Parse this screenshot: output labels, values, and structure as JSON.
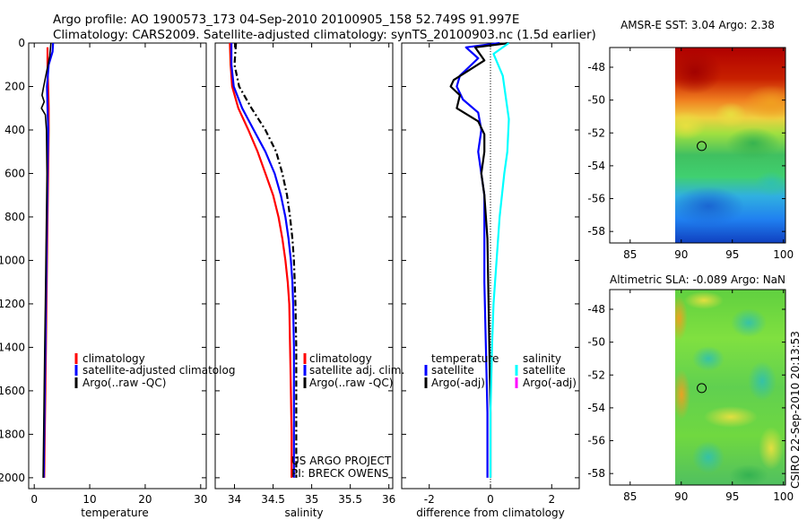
{
  "header": {
    "line1": "Argo profile: AO 1900573_173 04-Sep-2010 20100905_158 52.749S 91.997E",
    "line2": "Climatology: CARS2009. Satellite-adjusted climatology: synTS_20100903.nc (1.5d earlier)"
  },
  "side_stamp": "CSIRO 22-Sep-2010 20:13:53",
  "colors": {
    "climatology": "#ff0000",
    "satellite": "#0000ff",
    "argo": "#000000",
    "salinity_sat": "#00ffff",
    "salinity_argo": "#ff00ff"
  },
  "chart_data": [
    {
      "type": "line",
      "xlabel": "temperature",
      "xlim": [
        -1,
        31
      ],
      "ylim": [
        2050,
        0
      ],
      "xticks": [
        0,
        10,
        20,
        30
      ],
      "yticks": [
        0,
        200,
        400,
        600,
        800,
        1000,
        1200,
        1400,
        1600,
        1800,
        2000
      ],
      "legend": [
        "climatology",
        "satellite-adjusted climatolog",
        "Argo(..raw -QC)"
      ],
      "series": [
        {
          "name": "climatology",
          "color": "#ff0000",
          "width": 2.2,
          "points": [
            [
              2.4,
              20
            ],
            [
              2.4,
              100
            ],
            [
              2.5,
              200
            ],
            [
              2.6,
              300
            ],
            [
              2.6,
              400
            ],
            [
              2.5,
              600
            ],
            [
              2.4,
              800
            ],
            [
              2.3,
              1000
            ],
            [
              2.2,
              1200
            ],
            [
              2.1,
              1400
            ],
            [
              2.0,
              1600
            ],
            [
              1.9,
              1800
            ],
            [
              1.8,
              2000
            ]
          ]
        },
        {
          "name": "satellite-adjusted climatolog",
          "color": "#0000ff",
          "width": 2.2,
          "points": [
            [
              3.4,
              0
            ],
            [
              3.3,
              40
            ],
            [
              2.6,
              100
            ],
            [
              2.3,
              200
            ],
            [
              2.4,
              300
            ],
            [
              2.5,
              400
            ],
            [
              2.4,
              600
            ],
            [
              2.3,
              800
            ],
            [
              2.2,
              1000
            ],
            [
              2.1,
              1200
            ],
            [
              2.0,
              1400
            ],
            [
              1.9,
              1600
            ],
            [
              1.8,
              1800
            ],
            [
              1.7,
              2000
            ]
          ]
        },
        {
          "name": "Argo(..raw -QC)",
          "color": "#000000",
          "width": 1.6,
          "points": [
            [
              3.0,
              0
            ],
            [
              2.8,
              60
            ],
            [
              1.7,
              200
            ],
            [
              1.4,
              240
            ],
            [
              1.8,
              270
            ],
            [
              1.3,
              300
            ],
            [
              2.0,
              330
            ],
            [
              2.2,
              400
            ],
            [
              2.3,
              600
            ],
            [
              2.2,
              800
            ],
            [
              2.1,
              1000
            ],
            [
              2.0,
              1200
            ],
            [
              1.9,
              1400
            ],
            [
              1.8,
              1600
            ],
            [
              1.7,
              1800
            ],
            [
              1.6,
              2000
            ]
          ]
        }
      ]
    },
    {
      "type": "line",
      "xlabel": "salinity",
      "xlim": [
        33.75,
        36.05
      ],
      "ylim": [
        2050,
        0
      ],
      "xticks": [
        34,
        34.5,
        35,
        35.5,
        36
      ],
      "legend": [
        "climatology",
        "satellite adj. clim.",
        "Argo(..raw -QC)"
      ],
      "annotations": [
        "US ARGO PROJECT",
        "PI: BRECK OWENS"
      ],
      "series": [
        {
          "name": "climatology",
          "color": "#ff0000",
          "width": 2.2,
          "points": [
            [
              33.94,
              0
            ],
            [
              33.95,
              100
            ],
            [
              33.97,
              200
            ],
            [
              34.05,
              300
            ],
            [
              34.18,
              400
            ],
            [
              34.3,
              500
            ],
            [
              34.4,
              600
            ],
            [
              34.5,
              700
            ],
            [
              34.57,
              800
            ],
            [
              34.62,
              900
            ],
            [
              34.66,
              1000
            ],
            [
              34.69,
              1100
            ],
            [
              34.71,
              1200
            ],
            [
              34.72,
              1400
            ],
            [
              34.73,
              1600
            ],
            [
              34.74,
              1800
            ],
            [
              34.74,
              2000
            ]
          ]
        },
        {
          "name": "satellite adj. clim.",
          "color": "#0000ff",
          "width": 2.2,
          "points": [
            [
              33.96,
              0
            ],
            [
              33.96,
              100
            ],
            [
              33.99,
              200
            ],
            [
              34.1,
              300
            ],
            [
              34.25,
              400
            ],
            [
              34.4,
              500
            ],
            [
              34.52,
              600
            ],
            [
              34.6,
              700
            ],
            [
              34.66,
              800
            ],
            [
              34.7,
              900
            ],
            [
              34.73,
              1000
            ],
            [
              34.75,
              1100
            ],
            [
              34.76,
              1200
            ],
            [
              34.77,
              1400
            ],
            [
              34.77,
              1600
            ],
            [
              34.77,
              1800
            ],
            [
              34.77,
              2000
            ]
          ]
        },
        {
          "name": "Argo(..raw -QC)",
          "color": "#000000",
          "width": 2.2,
          "dash": "7,3,2,3",
          "points": [
            [
              34.02,
              0
            ],
            [
              34.0,
              100
            ],
            [
              34.06,
              200
            ],
            [
              34.22,
              300
            ],
            [
              34.4,
              400
            ],
            [
              34.54,
              500
            ],
            [
              34.62,
              600
            ],
            [
              34.68,
              700
            ],
            [
              34.72,
              800
            ],
            [
              34.75,
              900
            ],
            [
              34.77,
              1000
            ],
            [
              34.78,
              1100
            ],
            [
              34.79,
              1200
            ],
            [
              34.8,
              1400
            ],
            [
              34.8,
              1600
            ],
            [
              34.8,
              1800
            ],
            [
              34.8,
              2000
            ]
          ]
        }
      ]
    },
    {
      "type": "line",
      "xlabel": "difference from climatology",
      "xlim": [
        -2.9,
        2.9
      ],
      "ylim": [
        2050,
        0
      ],
      "xticks": [
        -2,
        0,
        2
      ],
      "legend_temperature_title": "temperature",
      "legend_salinity_title": "salinity",
      "legend": [
        "satellite",
        "Argo(-adj)",
        "satellite",
        "Argo(-adj)"
      ],
      "zero_line": true,
      "series": [
        {
          "name": "satellite",
          "color": "#0000ff",
          "width": 2.2,
          "points": [
            [
              0.3,
              0
            ],
            [
              -0.8,
              20
            ],
            [
              -0.4,
              70
            ],
            [
              -1.0,
              150
            ],
            [
              -1.1,
              200
            ],
            [
              -0.9,
              260
            ],
            [
              -0.4,
              320
            ],
            [
              -0.3,
              400
            ],
            [
              -0.4,
              500
            ],
            [
              -0.2,
              700
            ],
            [
              -0.2,
              900
            ],
            [
              -0.2,
              1100
            ],
            [
              -0.15,
              1400
            ],
            [
              -0.1,
              1700
            ],
            [
              -0.1,
              2000
            ]
          ]
        },
        {
          "name": "Argo(-adj)",
          "color": "#000000",
          "width": 2.2,
          "points": [
            [
              0.6,
              0
            ],
            [
              -0.5,
              20
            ],
            [
              -0.2,
              80
            ],
            [
              -1.2,
              170
            ],
            [
              -1.3,
              200
            ],
            [
              -1.0,
              240
            ],
            [
              -1.1,
              300
            ],
            [
              -0.4,
              360
            ],
            [
              -0.2,
              420
            ],
            [
              -0.2,
              500
            ],
            [
              -0.3,
              600
            ],
            [
              -0.2,
              700
            ],
            [
              -0.1,
              900
            ],
            [
              -0.05,
              1300
            ],
            [
              0.0,
              1700
            ],
            [
              0.0,
              2000
            ]
          ]
        },
        {
          "name": "satellite",
          "color": "#00ffff",
          "width": 2.2,
          "points": [
            [
              0.6,
              0
            ],
            [
              0.1,
              50
            ],
            [
              0.4,
              150
            ],
            [
              0.5,
              250
            ],
            [
              0.6,
              350
            ],
            [
              0.55,
              500
            ],
            [
              0.45,
              600
            ],
            [
              0.3,
              800
            ],
            [
              0.2,
              1000
            ],
            [
              0.1,
              1200
            ],
            [
              0.05,
              1400
            ],
            [
              0.0,
              1700
            ],
            [
              0.0,
              2000
            ]
          ]
        }
      ]
    },
    {
      "type": "heatmap",
      "title": "AMSR-E SST: 3.04 Argo: 2.38",
      "xlim": [
        83,
        100.2
      ],
      "ylim": [
        -58.7,
        -46.8
      ],
      "xticks": [
        85,
        90,
        95,
        100
      ],
      "yticks": [
        -48,
        -50,
        -52,
        -54,
        -56,
        -58
      ],
      "data_x_range": [
        90,
        100
      ],
      "data_y_range": [
        -58.5,
        -47
      ],
      "marker": [
        92,
        -52.8
      ]
    },
    {
      "type": "heatmap",
      "title": "Altimetric SLA: -0.089 Argo: NaN",
      "xlim": [
        83,
        100.2
      ],
      "ylim": [
        -58.7,
        -46.8
      ],
      "xticks": [
        85,
        90,
        95,
        100
      ],
      "yticks": [
        -48,
        -50,
        -52,
        -54,
        -56,
        -58
      ],
      "data_x_range": [
        90,
        100
      ],
      "data_y_range": [
        -58.5,
        -47
      ],
      "marker": [
        92,
        -52.8
      ]
    }
  ]
}
